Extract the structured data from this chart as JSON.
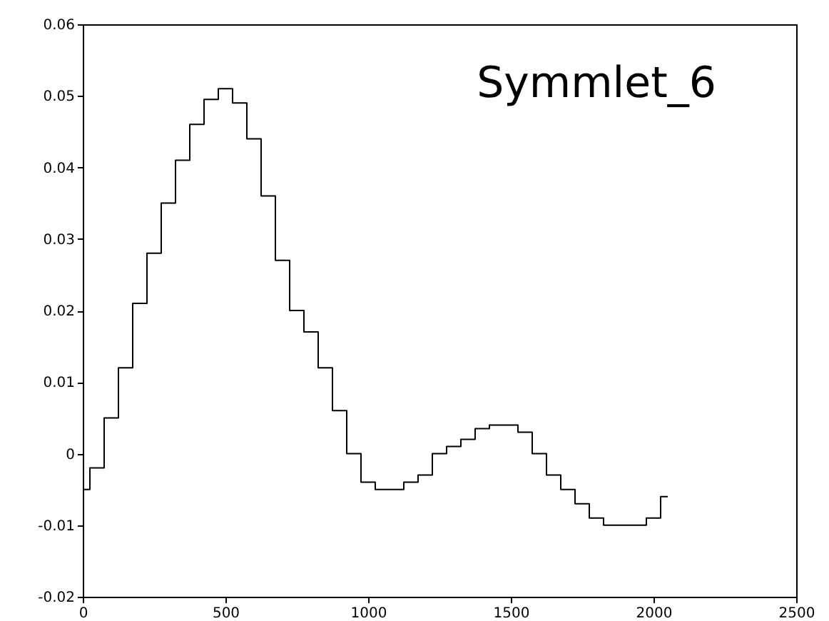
{
  "chart_data": {
    "type": "step",
    "annotations": [
      "Symmlet_6"
    ],
    "x": [
      0,
      50,
      100,
      150,
      200,
      250,
      300,
      350,
      400,
      450,
      500,
      550,
      600,
      650,
      700,
      750,
      800,
      850,
      900,
      950,
      1000,
      1050,
      1100,
      1150,
      1200,
      1250,
      1300,
      1350,
      1400,
      1450,
      1500,
      1550,
      1600,
      1650,
      1700,
      1750,
      1800,
      1850,
      1900,
      1950,
      2000,
      2050
    ],
    "series": [
      {
        "color": "#000000",
        "values": [
          -0.005,
          -0.002,
          0.005,
          0.012,
          0.021,
          0.028,
          0.035,
          0.041,
          0.046,
          0.0495,
          0.051,
          0.049,
          0.044,
          0.036,
          0.027,
          0.02,
          0.017,
          0.012,
          0.006,
          0.0,
          -0.004,
          -0.005,
          -0.005,
          -0.004,
          -0.003,
          0.0,
          0.001,
          0.002,
          0.0035,
          0.004,
          0.004,
          0.003,
          0.0,
          -0.003,
          -0.005,
          -0.007,
          -0.009,
          -0.01,
          -0.01,
          -0.01,
          -0.009,
          -0.006
        ]
      }
    ],
    "xlim": [
      0,
      2500
    ],
    "xticks": [
      0,
      500,
      1000,
      1500,
      2000,
      2500
    ],
    "ylim": [
      -0.02,
      0.06
    ],
    "yticks": [
      -0.02,
      -0.01,
      0,
      0.01,
      0.02,
      0.03,
      0.04,
      0.05,
      0.06
    ],
    "grid": false
  }
}
